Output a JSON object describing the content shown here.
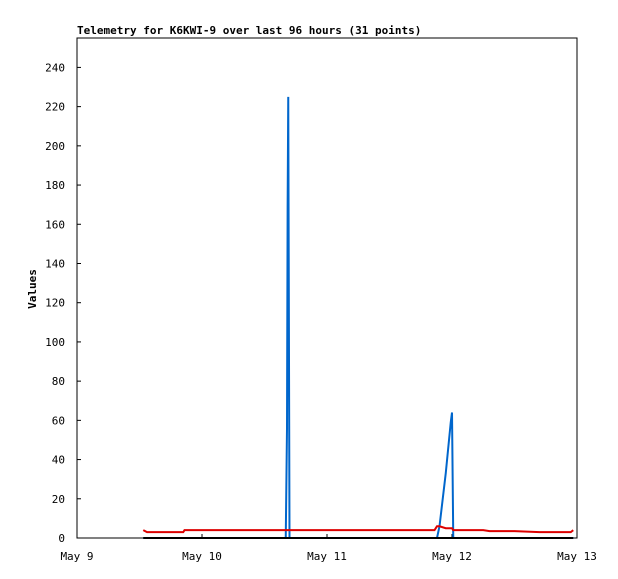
{
  "chart_data": {
    "type": "line",
    "title": "Telemetry for K6KWI-9 over last 96 hours (31 points)",
    "y_label": "Values",
    "x": [
      9.53,
      9.56,
      9.7,
      9.85,
      9.86,
      10.2,
      10.5,
      10.67,
      10.68,
      10.685,
      10.69,
      10.7,
      10.71,
      11.0,
      11.3,
      11.6,
      11.86,
      11.87,
      11.88,
      11.9,
      11.95,
      11.99,
      12.0,
      12.01,
      12.1,
      12.25,
      12.3,
      12.5,
      12.7,
      12.95,
      12.97
    ],
    "series": [
      {
        "color": "#0066cc",
        "values": [
          0,
          0,
          0,
          0,
          0,
          0,
          0,
          0,
          56,
          168,
          225,
          0,
          0,
          0,
          0,
          0,
          0,
          0,
          0,
          6,
          33,
          59,
          64,
          0,
          0,
          0,
          0,
          0,
          0,
          0,
          0
        ]
      },
      {
        "color": "#000000",
        "values": [
          0,
          0,
          0,
          0,
          0,
          0,
          0,
          0,
          0,
          0,
          0,
          0,
          0,
          0,
          0,
          0,
          0,
          0,
          0,
          0,
          0,
          0,
          0,
          0,
          0,
          0,
          0,
          0,
          0,
          0,
          0
        ]
      },
      {
        "color": "#dd0000",
        "values": [
          4,
          3,
          3,
          3,
          4,
          4,
          4,
          4,
          4,
          4,
          4,
          4,
          4,
          4,
          4,
          4,
          4,
          5,
          6,
          6,
          5,
          5,
          5,
          4,
          4,
          4,
          3.5,
          3.5,
          3,
          3,
          4
        ]
      }
    ],
    "xlim": [
      9,
      13
    ],
    "xticks": [
      {
        "value": 9,
        "label": "May 9"
      },
      {
        "value": 10,
        "label": "May 10"
      },
      {
        "value": 11,
        "label": "May 11"
      },
      {
        "value": 12,
        "label": "May 12"
      },
      {
        "value": 13,
        "label": "May 13"
      }
    ],
    "ylim": [
      0,
      255
    ],
    "yticks": [
      0,
      20,
      40,
      60,
      80,
      100,
      120,
      140,
      160,
      180,
      200,
      220,
      240
    ]
  }
}
